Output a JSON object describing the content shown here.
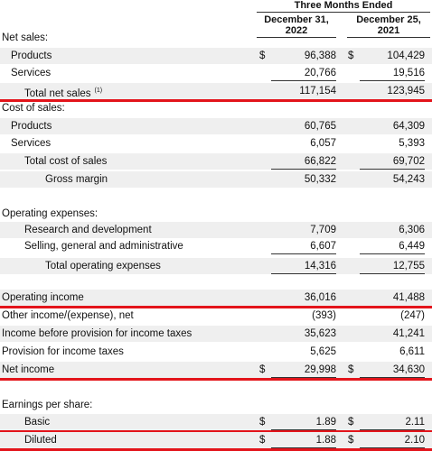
{
  "header": {
    "group": "Three Months Ended",
    "columns": [
      [
        "December 31,",
        "2022"
      ],
      [
        "December 25,",
        "2021"
      ]
    ]
  },
  "rows": [
    {
      "label": "Net sales:"
    },
    {
      "label": "Products",
      "cur1": "$",
      "v1": "96,388",
      "cur2": "$",
      "v2": "104,429"
    },
    {
      "label": "Services",
      "v1": "20,766",
      "v2": "19,516"
    },
    {
      "label": "Total net sales",
      "note": "(1)",
      "v1": "117,154",
      "v2": "123,945"
    },
    {
      "label": "Cost of sales:"
    },
    {
      "label": "Products",
      "v1": "60,765",
      "v2": "64,309"
    },
    {
      "label": "Services",
      "v1": "6,057",
      "v2": "5,393"
    },
    {
      "label": "Total cost of sales",
      "v1": "66,822",
      "v2": "69,702"
    },
    {
      "label": "Gross margin",
      "v1": "50,332",
      "v2": "54,243"
    },
    {
      "label": "Operating expenses:"
    },
    {
      "label": "Research and development",
      "v1": "7,709",
      "v2": "6,306"
    },
    {
      "label": "Selling, general and administrative",
      "v1": "6,607",
      "v2": "6,449"
    },
    {
      "label": "Total operating expenses",
      "v1": "14,316",
      "v2": "12,755"
    },
    {
      "label": "Operating income",
      "v1": "36,016",
      "v2": "41,488"
    },
    {
      "label": "Other income/(expense), net",
      "v1": "(393)",
      "v2": "(247)"
    },
    {
      "label": "Income before provision for income taxes",
      "v1": "35,623",
      "v2": "41,241"
    },
    {
      "label": "Provision for income taxes",
      "v1": "5,625",
      "v2": "6,611"
    },
    {
      "label": "Net income",
      "cur1": "$",
      "v1": "29,998",
      "cur2": "$",
      "v2": "34,630"
    },
    {
      "label": "Earnings per share:"
    },
    {
      "label": "Basic",
      "cur1": "$",
      "v1": "1.89",
      "cur2": "$",
      "v2": "2.11"
    },
    {
      "label": "Diluted",
      "cur1": "$",
      "v1": "1.88",
      "cur2": "$",
      "v2": "2.10"
    }
  ]
}
